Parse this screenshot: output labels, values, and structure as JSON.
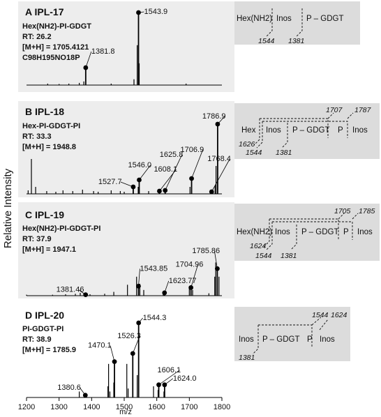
{
  "chart_data": {
    "type": "bar",
    "xlabel": "m/z",
    "ylabel": "Relative Intensity",
    "xlim": [
      1200,
      1800
    ],
    "x_ticks": [
      "1200",
      "1300",
      "1400",
      "1500",
      "1600",
      "1700",
      "1800"
    ],
    "panels": [
      {
        "letter": "A",
        "name": "IPL-17",
        "info": [
          "Hex(NH2)-PI-GDGT",
          "RT: 26.2",
          "[M+H] = 1705.4121",
          "C98H195NO18P"
        ],
        "labeled_peaks": [
          {
            "mz": 1381.8,
            "label": "1381.8",
            "rel": 0.24
          },
          {
            "mz": 1543.9,
            "label": "1543.9",
            "rel": 1.0
          }
        ],
        "minor_peaks": [
          [
            1265,
            0.02
          ],
          [
            1300,
            0.015
          ],
          [
            1330,
            0.02
          ],
          [
            1362,
            0.03
          ],
          [
            1376,
            0.05
          ],
          [
            1460,
            0.02
          ],
          [
            1530,
            0.08
          ],
          [
            1540,
            0.55
          ],
          [
            1546,
            0.3
          ],
          [
            1690,
            0.02
          ]
        ],
        "structure": {
          "segments": [
            "Hex(NH2)",
            "Inos",
            "P – GDGT"
          ],
          "cleavages": [
            "1544",
            "1381"
          ],
          "upper": []
        }
      },
      {
        "letter": "B",
        "name": "IPL-18",
        "info": [
          "Hex-PI-GDGT-PI",
          "RT: 33.3",
          "[M+H] = 1948.8"
        ],
        "labeled_peaks": [
          {
            "mz": 1527.7,
            "label": "1527.7",
            "rel": 0.1
          },
          {
            "mz": 1546.0,
            "label": "1546.0",
            "rel": 0.2
          },
          {
            "mz": 1608.1,
            "label": "1608.1",
            "rel": 0.04
          },
          {
            "mz": 1625.8,
            "label": "1625.8",
            "rel": 0.05
          },
          {
            "mz": 1706.9,
            "label": "1706.9",
            "rel": 0.22
          },
          {
            "mz": 1768.4,
            "label": "1768.4",
            "rel": 0.03
          },
          {
            "mz": 1786.9,
            "label": "1786.9",
            "rel": 1.0
          }
        ],
        "minor_peaks": [
          [
            1205,
            0.05
          ],
          [
            1215,
            0.5
          ],
          [
            1228,
            0.1
          ],
          [
            1262,
            0.04
          ],
          [
            1290,
            0.03
          ],
          [
            1312,
            0.05
          ],
          [
            1342,
            0.04
          ],
          [
            1372,
            0.06
          ],
          [
            1406,
            0.04
          ],
          [
            1420,
            0.03
          ],
          [
            1460,
            0.05
          ],
          [
            1488,
            0.04
          ],
          [
            1500,
            0.03
          ],
          [
            1543,
            0.1
          ],
          [
            1575,
            0.04
          ],
          [
            1702,
            0.1
          ],
          [
            1782,
            0.4
          ],
          [
            1779,
            0.12
          ]
        ],
        "structure": {
          "segments": [
            "Hex",
            "Inos",
            "P – GDGT",
            "P",
            "Inos"
          ],
          "cleavages": [
            "1626",
            "1544",
            "1381"
          ],
          "upper": [
            "1707",
            "1787"
          ]
        }
      },
      {
        "letter": "C",
        "name": "IPL-19",
        "info": [
          "Hex(NH2)-PI-GDGT-PI",
          "RT: 37.9",
          "[M+H] = 1947.1"
        ],
        "labeled_peaks": [
          {
            "mz": 1381.46,
            "label": "1381.46",
            "rel": 0.02
          },
          {
            "mz": 1543.85,
            "label": "1543.85",
            "rel": 0.2
          },
          {
            "mz": 1623.77,
            "label": "1623.77",
            "rel": 0.06
          },
          {
            "mz": 1704.96,
            "label": "1704.96",
            "rel": 0.17
          },
          {
            "mz": 1785.86,
            "label": "1785.86",
            "rel": 0.57
          }
        ],
        "minor_peaks": [
          [
            1200,
            0.02
          ],
          [
            1280,
            0.02
          ],
          [
            1320,
            0.03
          ],
          [
            1350,
            0.04
          ],
          [
            1365,
            0.06
          ],
          [
            1377,
            0.05
          ],
          [
            1395,
            0.03
          ],
          [
            1440,
            0.04
          ],
          [
            1468,
            0.08
          ],
          [
            1510,
            0.23
          ],
          [
            1538,
            0.4
          ],
          [
            1548,
            0.25
          ],
          [
            1560,
            0.12
          ],
          [
            1620,
            0.05
          ],
          [
            1700,
            0.2
          ],
          [
            1710,
            0.12
          ],
          [
            1760,
            0.05
          ],
          [
            1778,
            0.4
          ],
          [
            1781,
            0.7
          ],
          [
            1791,
            0.4
          ]
        ],
        "structure": {
          "segments": [
            "Hex(NH2)",
            "Inos",
            "P – GDGT",
            "P",
            "Inos"
          ],
          "cleavages": [
            "1624",
            "1544",
            "1381"
          ],
          "upper": [
            "1705",
            "1785"
          ]
        }
      },
      {
        "letter": "D",
        "name": "IPL-20",
        "info": [
          "PI-GDGT-PI",
          "RT: 38.9",
          "[M+H] = 1785.9"
        ],
        "labeled_peaks": [
          {
            "mz": 1380.6,
            "label": "1380.6",
            "rel": 0.03
          },
          {
            "mz": 1470.1,
            "label": "1470.1",
            "rel": 0.48
          },
          {
            "mz": 1526.3,
            "label": "1526.3",
            "rel": 0.59
          },
          {
            "mz": 1544.3,
            "label": "1544.3",
            "rel": 1.0
          },
          {
            "mz": 1606.1,
            "label": "1606.1",
            "rel": 0.17
          },
          {
            "mz": 1624.0,
            "label": "1624.0",
            "rel": 0.17
          }
        ],
        "minor_peaks": [
          [
            1362,
            0.08
          ],
          [
            1378,
            0.05
          ],
          [
            1452,
            0.45
          ],
          [
            1456,
            0.08
          ],
          [
            1468,
            0.2
          ],
          [
            1508,
            0.45
          ],
          [
            1512,
            0.12
          ],
          [
            1540,
            0.3
          ],
          [
            1590,
            0.15
          ],
          [
            1604,
            0.1
          ],
          [
            1622,
            0.08
          ],
          [
            1450,
            0.15
          ]
        ],
        "structure": {
          "segments": [
            "Inos",
            "P – GDGT",
            "P",
            "Inos"
          ],
          "cleavages": [
            "1381"
          ],
          "upper": [
            "1544",
            "1624"
          ]
        }
      }
    ]
  }
}
